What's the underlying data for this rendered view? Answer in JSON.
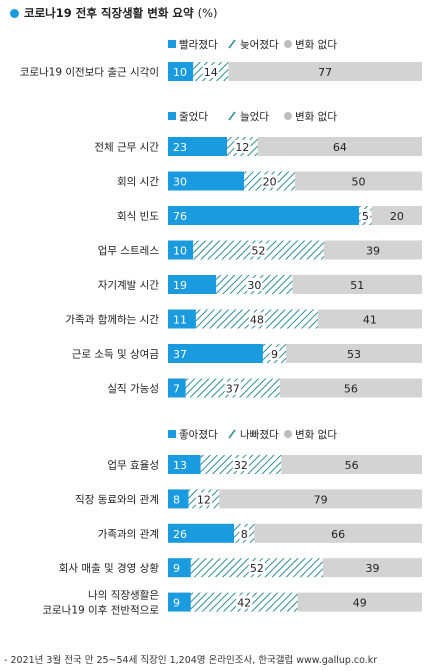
{
  "title": "코로나19 전후 직장생활 변화 요약",
  "title_unit": "(%)",
  "footer": "- 2021년 3월 전국 만 25~54세 직장인 1,204명 온라인조사, 한국갤럽 www.gallup.co.kr",
  "colors": {
    "solid": "#1a9be0",
    "hatch": "#2d8e97",
    "gray": "#d3d3d3",
    "accent": "#1a9be0"
  },
  "chart_data": [
    {
      "type": "bar",
      "stacked": true,
      "orientation": "horizontal",
      "legend_position": "top-right",
      "series": [
        {
          "name": "빨라졌다",
          "pattern": "solid"
        },
        {
          "name": "늦어졌다",
          "pattern": "hatch"
        },
        {
          "name": "변화 없다",
          "pattern": "gray"
        }
      ],
      "rows": [
        {
          "label": [
            "코로나19 이전보다 출근 시각이"
          ],
          "values": [
            10,
            14,
            77
          ]
        }
      ]
    },
    {
      "type": "bar",
      "stacked": true,
      "orientation": "horizontal",
      "legend_position": "top-right",
      "series": [
        {
          "name": "줄었다",
          "pattern": "solid"
        },
        {
          "name": "늘었다",
          "pattern": "hatch"
        },
        {
          "name": "변화 없다",
          "pattern": "gray"
        }
      ],
      "rows": [
        {
          "label": [
            "전체 근무 시간"
          ],
          "values": [
            23,
            12,
            64
          ]
        },
        {
          "label": [
            "회의 시간"
          ],
          "values": [
            30,
            20,
            50
          ]
        },
        {
          "label": [
            "회식 빈도"
          ],
          "values": [
            76,
            5,
            20
          ]
        },
        {
          "label": [
            "업무 스트레스"
          ],
          "values": [
            10,
            52,
            39
          ]
        },
        {
          "label": [
            "자기계발 시간"
          ],
          "values": [
            19,
            30,
            51
          ]
        },
        {
          "label": [
            "가족과 함께하는 시간"
          ],
          "values": [
            11,
            48,
            41
          ]
        },
        {
          "label": [
            "근로 소득 및 상여금"
          ],
          "values": [
            37,
            9,
            53
          ]
        },
        {
          "label": [
            "실직 가능성"
          ],
          "values": [
            7,
            37,
            56
          ]
        }
      ]
    },
    {
      "type": "bar",
      "stacked": true,
      "orientation": "horizontal",
      "legend_position": "top-right",
      "series": [
        {
          "name": "좋아졌다",
          "pattern": "solid"
        },
        {
          "name": "나빠졌다",
          "pattern": "hatch"
        },
        {
          "name": "변화 없다",
          "pattern": "gray"
        }
      ],
      "rows": [
        {
          "label": [
            "업무 효율성"
          ],
          "values": [
            13,
            32,
            56
          ]
        },
        {
          "label": [
            "직장 동료와의 관계"
          ],
          "values": [
            8,
            12,
            79
          ]
        },
        {
          "label": [
            "가족과의 관계"
          ],
          "values": [
            26,
            8,
            66
          ]
        },
        {
          "label": [
            "회사 매출 및 경영 상황"
          ],
          "values": [
            9,
            52,
            39
          ]
        },
        {
          "label": [
            "나의 직장생활은",
            "코로나19 이후 전반적으로"
          ],
          "values": [
            9,
            42,
            49
          ]
        }
      ]
    }
  ]
}
